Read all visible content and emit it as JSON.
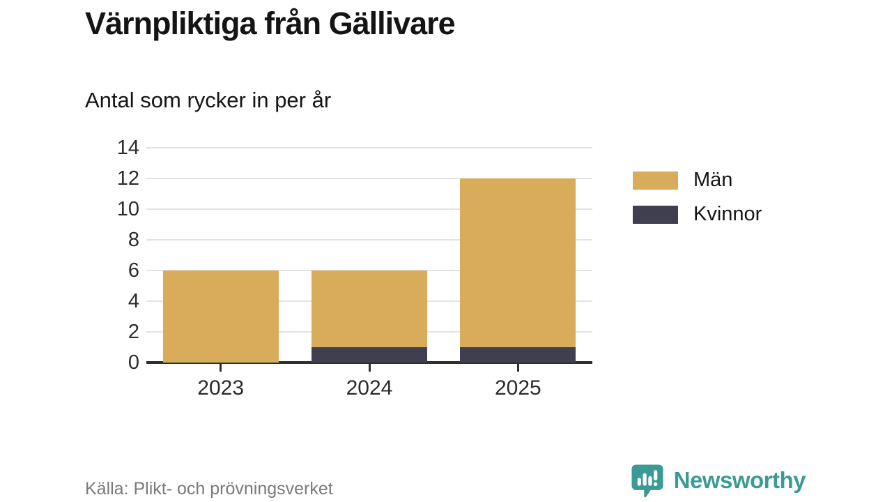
{
  "header": {
    "title": "Värnpliktiga från Gällivare",
    "subtitle": "Antal som rycker in per år"
  },
  "chart_data": {
    "type": "bar",
    "stacked": true,
    "title": "Värnpliktiga från Gällivare",
    "subtitle": "Antal som rycker in per år",
    "categories": [
      "2023",
      "2024",
      "2025"
    ],
    "series": [
      {
        "name": "Män",
        "color": "#D9AC5C",
        "values": [
          6,
          5,
          11
        ]
      },
      {
        "name": "Kvinnor",
        "color": "#403F4F",
        "values": [
          0,
          1,
          1
        ]
      }
    ],
    "stack_totals": [
      6,
      6,
      12
    ],
    "xlabel": "",
    "ylabel": "",
    "ylim": [
      0,
      14
    ],
    "yticks": [
      0,
      2,
      4,
      6,
      8,
      10,
      12,
      14
    ],
    "grid": "horizontal",
    "legend_position": "right"
  },
  "footer": {
    "source": "Källa: Plikt- och prövningsverket",
    "brand": "Newsworthy"
  },
  "colors": {
    "men": "#D9AC5C",
    "women": "#403F4F",
    "axis": "#2e2e2e",
    "gridline": "#e3e3e3",
    "text": "#141414",
    "muted": "#7a7a7a",
    "teal": "#3B9B94"
  }
}
